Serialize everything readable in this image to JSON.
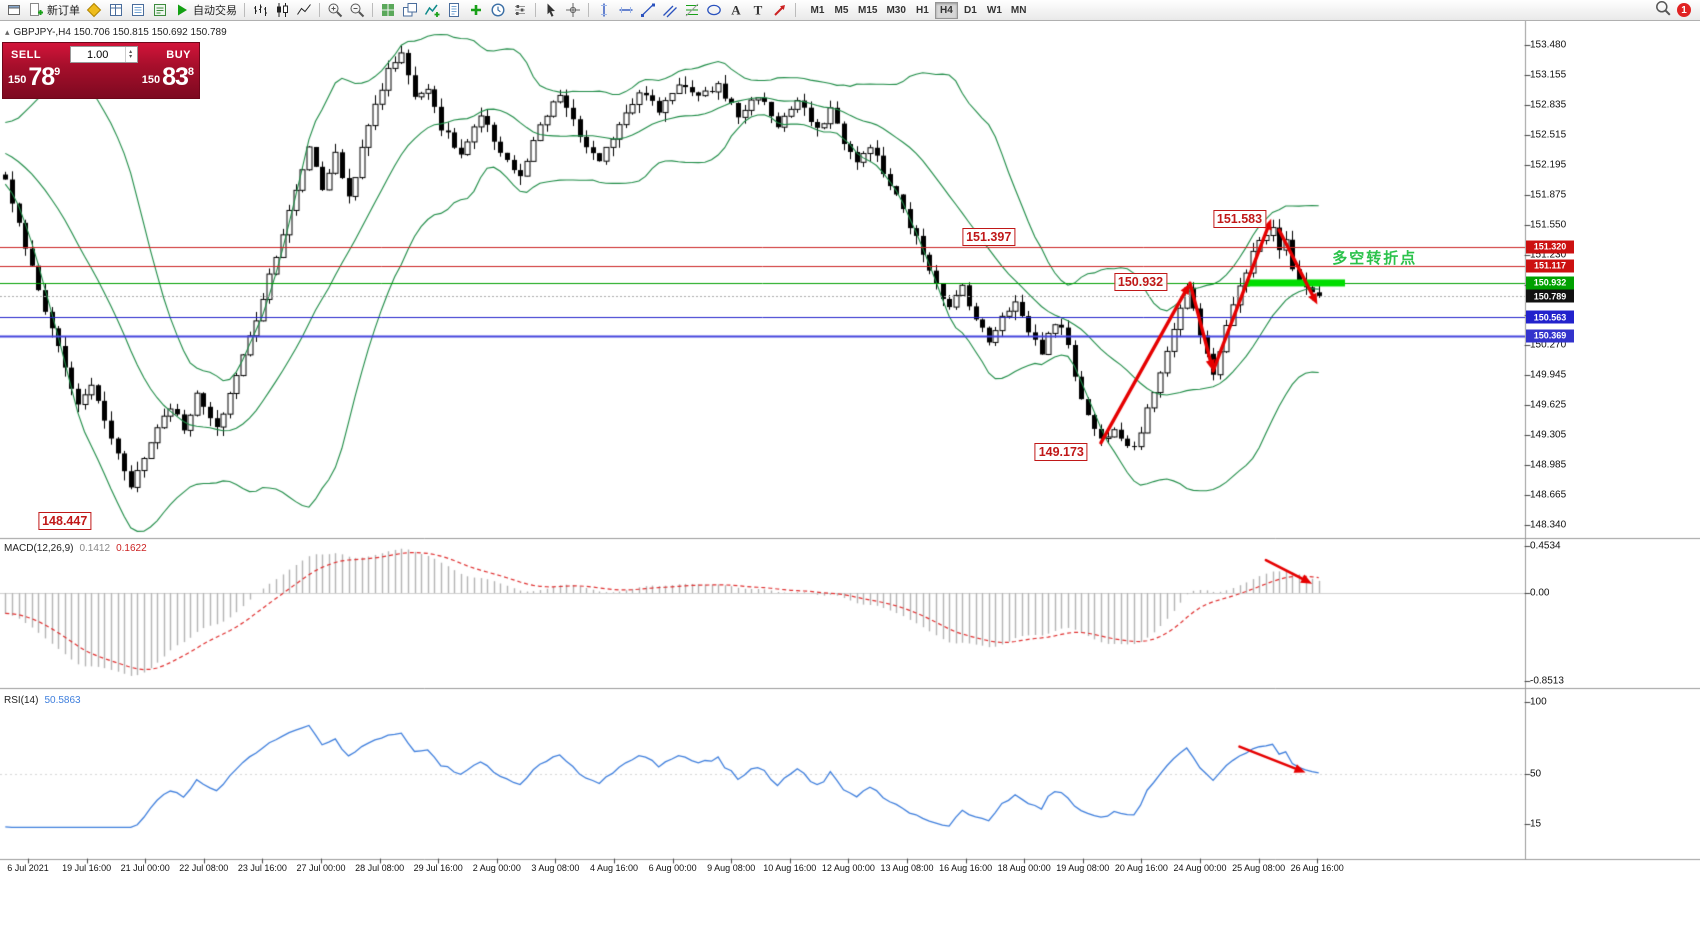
{
  "window": {
    "notification_badge": "1"
  },
  "icons": {
    "header_collapse": "▴",
    "spinner_up": "▴",
    "spinner_down": "▾"
  },
  "toolbar": {
    "buttons": [
      {
        "name": "chart-window-icon",
        "k": "win"
      },
      {
        "name": "new-order-button",
        "k": "neworder",
        "label": "新订单"
      },
      {
        "name": "metaeditor-icon",
        "k": "mql"
      },
      {
        "name": "market-watch-icon",
        "k": "mwatch"
      },
      {
        "name": "data-window-icon",
        "k": "dwin"
      },
      {
        "name": "strategy-tester-icon",
        "k": "term"
      },
      {
        "name": "auto-trading-button",
        "k": "play",
        "label": "自动交易"
      },
      {
        "sep": true
      },
      {
        "name": "bar-chart-icon",
        "k": "bars"
      },
      {
        "name": "candlestick-chart-icon",
        "k": "candles"
      },
      {
        "name": "line-chart-icon",
        "k": "line"
      },
      {
        "sep": true
      },
      {
        "name": "zoom-in-icon",
        "k": "zoomin"
      },
      {
        "name": "zoom-out-icon",
        "k": "zoomout"
      },
      {
        "sep": true
      },
      {
        "name": "tile-windows-icon",
        "k": "tile"
      },
      {
        "name": "cascade-windows-icon",
        "k": "cascade"
      },
      {
        "name": "indicators-list-icon",
        "k": "indicators"
      },
      {
        "name": "templates-icon",
        "k": "template"
      },
      {
        "name": "add-indicator-icon",
        "k": "plus"
      },
      {
        "name": "periods-icon",
        "k": "clock"
      },
      {
        "name": "chart-properties-icon",
        "k": "prop"
      },
      {
        "sep": true
      },
      {
        "name": "cursor-icon",
        "k": "cursor"
      },
      {
        "name": "crosshair-icon",
        "k": "cross"
      },
      {
        "sep": true
      },
      {
        "name": "vertical-line-icon",
        "k": "vline"
      },
      {
        "name": "horizontal-line-icon",
        "k": "hline"
      },
      {
        "name": "trendline-icon",
        "k": "trend"
      },
      {
        "name": "channel-icon",
        "k": "channel"
      },
      {
        "name": "fibonacci-icon",
        "k": "fibo"
      },
      {
        "name": "shapes-icon",
        "k": "shapes"
      },
      {
        "name": "text-label-icon",
        "k": "textA"
      },
      {
        "name": "text-tool-icon",
        "k": "textT"
      },
      {
        "name": "arrow-tools-icon",
        "k": "arrows"
      },
      {
        "sep": true
      }
    ],
    "timeframes": [
      "M1",
      "M5",
      "M15",
      "M30",
      "H1",
      "H4",
      "D1",
      "W1",
      "MN"
    ],
    "active_timeframe": "H4",
    "right_icons": [
      {
        "name": "search-icon",
        "k": "search"
      }
    ]
  },
  "trade_panel": {
    "sell_label": "SELL",
    "buy_label": "BUY",
    "volume": "1.00",
    "sell_price": {
      "big_prefix": "150",
      "big": "78",
      "sup": "9"
    },
    "buy_price": {
      "big_prefix": "150",
      "big": "83",
      "sup": "8"
    }
  },
  "chart_data": {
    "type": "candlestick",
    "symbol": "GBPJPY-",
    "timeframe": "H4",
    "header_line": "GBPJPY-,H4  150.706 150.815 150.692 150.789",
    "ohlc_header": {
      "open": "150.706",
      "high": "150.815",
      "low": "150.692",
      "close": "150.789"
    },
    "ylim": [
      148.22,
      153.74
    ],
    "y_ticks": [
      "153.480",
      "153.155",
      "152.835",
      "152.515",
      "152.195",
      "151.875",
      "151.550",
      "151.230",
      "150.910",
      "150.590",
      "150.270",
      "149.945",
      "149.625",
      "149.305",
      "148.985",
      "148.665",
      "148.340"
    ],
    "x_labels": [
      "6 Jul 2021",
      "19 Jul 16:00",
      "21 Jul 00:00",
      "22 Jul 08:00",
      "23 Jul 16:00",
      "27 Jul 00:00",
      "28 Jul 08:00",
      "29 Jul 16:00",
      "2 Aug 00:00",
      "3 Aug 08:00",
      "4 Aug 16:00",
      "6 Aug 00:00",
      "9 Aug 08:00",
      "10 Aug 16:00",
      "12 Aug 00:00",
      "13 Aug 08:00",
      "16 Aug 16:00",
      "18 Aug 00:00",
      "19 Aug 08:00",
      "20 Aug 16:00",
      "24 Aug 00:00",
      "25 Aug 08:00",
      "26 Aug 16:00"
    ],
    "bars_visible": 200,
    "price_anchors": [
      [
        -40,
        153.35
      ],
      [
        -32,
        153.05
      ],
      [
        -24,
        152.78
      ],
      [
        -16,
        152.5
      ],
      [
        -8,
        152.28
      ],
      [
        0,
        152.05
      ],
      [
        2,
        151.55
      ],
      [
        5,
        150.85
      ],
      [
        8,
        150.25
      ],
      [
        11,
        149.6
      ],
      [
        13,
        149.85
      ],
      [
        15,
        149.45
      ],
      [
        17,
        149.1
      ],
      [
        19,
        148.78
      ],
      [
        21,
        149.05
      ],
      [
        23,
        149.4
      ],
      [
        25,
        149.62
      ],
      [
        27,
        149.38
      ],
      [
        29,
        149.72
      ],
      [
        32,
        149.35
      ],
      [
        35,
        149.95
      ],
      [
        38,
        150.55
      ],
      [
        41,
        151.25
      ],
      [
        44,
        151.9
      ],
      [
        46,
        152.4
      ],
      [
        48,
        151.95
      ],
      [
        50,
        152.3
      ],
      [
        52,
        151.85
      ],
      [
        54,
        152.35
      ],
      [
        56,
        152.85
      ],
      [
        58,
        153.2
      ],
      [
        60,
        153.42
      ],
      [
        62,
        152.9
      ],
      [
        64,
        153.05
      ],
      [
        66,
        152.6
      ],
      [
        69,
        152.3
      ],
      [
        72,
        152.7
      ],
      [
        75,
        152.35
      ],
      [
        78,
        152.05
      ],
      [
        81,
        152.6
      ],
      [
        84,
        152.95
      ],
      [
        87,
        152.5
      ],
      [
        90,
        152.2
      ],
      [
        93,
        152.65
      ],
      [
        96,
        153.0
      ],
      [
        99,
        152.78
      ],
      [
        102,
        153.08
      ],
      [
        105,
        152.9
      ],
      [
        108,
        153.05
      ],
      [
        111,
        152.72
      ],
      [
        114,
        152.95
      ],
      [
        117,
        152.62
      ],
      [
        120,
        152.88
      ],
      [
        123,
        152.55
      ],
      [
        125,
        152.8
      ],
      [
        127,
        152.45
      ],
      [
        129,
        152.2
      ],
      [
        131,
        152.42
      ],
      [
        133,
        152.1
      ],
      [
        135,
        151.85
      ],
      [
        137,
        151.55
      ],
      [
        139,
        151.25
      ],
      [
        141,
        150.95
      ],
      [
        143,
        150.65
      ],
      [
        145,
        150.9
      ],
      [
        147,
        150.55
      ],
      [
        149,
        150.3
      ],
      [
        151,
        150.6
      ],
      [
        153,
        150.72
      ],
      [
        155,
        150.42
      ],
      [
        157,
        150.2
      ],
      [
        159,
        150.52
      ],
      [
        161,
        150.3
      ],
      [
        162,
        149.95
      ],
      [
        164,
        149.5
      ],
      [
        166,
        149.25
      ],
      [
        168,
        149.4
      ],
      [
        170,
        149.22
      ],
      [
        171,
        149.18
      ],
      [
        173,
        149.55
      ],
      [
        175,
        150.0
      ],
      [
        177,
        150.45
      ],
      [
        179,
        150.88
      ],
      [
        181,
        150.35
      ],
      [
        183,
        149.98
      ],
      [
        185,
        150.45
      ],
      [
        187,
        150.9
      ],
      [
        189,
        151.25
      ],
      [
        191,
        151.48
      ],
      [
        192,
        151.56
      ],
      [
        193,
        151.3
      ],
      [
        194,
        151.42
      ],
      [
        195,
        151.1
      ],
      [
        196,
        150.95
      ],
      [
        197,
        150.88
      ],
      [
        198,
        150.8
      ],
      [
        199,
        150.79
      ]
    ],
    "bollinger": {
      "period": 20,
      "deviation": 2,
      "color": "#1e8c46"
    },
    "price_lines": [
      {
        "price": 151.32,
        "label": "151.320",
        "color": "#cc2222",
        "width": 1,
        "tag_bg": "#cc1111"
      },
      {
        "price": 151.117,
        "label": "151.117",
        "color": "#cc2222",
        "width": 1,
        "tag_bg": "#cc1111"
      },
      {
        "price": 150.932,
        "label": "150.932",
        "color": "#00a000",
        "width": 1,
        "tag_bg": "#00a000"
      },
      {
        "price": 150.563,
        "label": "150.563",
        "color": "#2222cc",
        "width": 1,
        "tag_bg": "#2222cc"
      },
      {
        "price": 150.369,
        "label": "150.369",
        "color": "#4444dd",
        "width": 2,
        "tag_bg": "#3333cc"
      }
    ],
    "bid_tag": {
      "price": 150.789,
      "label": "150.789",
      "tag_bg": "#111111"
    },
    "support_zone": {
      "price": 150.932,
      "from_bar": 188,
      "to_x": 1345,
      "thickness": 7,
      "color": "#00dd00"
    },
    "annotations": [
      {
        "text": "148.447",
        "bar": 9,
        "price": 148.38,
        "style": "box"
      },
      {
        "text": "151.397",
        "bar": 149,
        "price": 151.42,
        "style": "box"
      },
      {
        "text": "150.932",
        "bar": 172,
        "price": 150.94,
        "style": "box"
      },
      {
        "text": "149.173",
        "bar": 160,
        "price": 149.12,
        "style": "box"
      },
      {
        "text": "151.583",
        "bar": 187,
        "price": 151.62,
        "style": "box"
      },
      {
        "text": "多空转折点",
        "bar": 200.6,
        "price": 151.19,
        "style": "text",
        "color": "#2bc24b"
      }
    ],
    "trend_arrows": [
      {
        "panel": "main",
        "from": [
          166,
          149.22
        ],
        "to": [
          179.5,
          150.93
        ]
      },
      {
        "panel": "main",
        "from": [
          179.5,
          150.93
        ],
        "to": [
          183,
          149.99
        ]
      },
      {
        "panel": "main",
        "from": [
          183,
          149.99
        ],
        "to": [
          191.8,
          151.62
        ]
      },
      {
        "panel": "main",
        "from": [
          193,
          151.5
        ],
        "to": [
          198.8,
          150.7
        ]
      },
      {
        "panel": "macd",
        "from": [
          191,
          0.32
        ],
        "to": [
          198,
          0.09
        ]
      },
      {
        "panel": "rsi",
        "from": [
          187,
          69
        ],
        "to": [
          197,
          51
        ]
      }
    ],
    "macd": {
      "name": "MACD(12,26,9)",
      "main_value": "0.1412",
      "signal_value": "0.1622",
      "fast": 12,
      "slow": 26,
      "signal": 9,
      "y_ticks": [
        "0.4534",
        "0.00",
        "-0.8513"
      ],
      "ylim": [
        -0.8513,
        0.4534
      ]
    },
    "rsi": {
      "name": "RSI(14)",
      "value": "50.5863",
      "period": 14,
      "y_ticks": [
        "100",
        "50",
        "15"
      ]
    }
  }
}
